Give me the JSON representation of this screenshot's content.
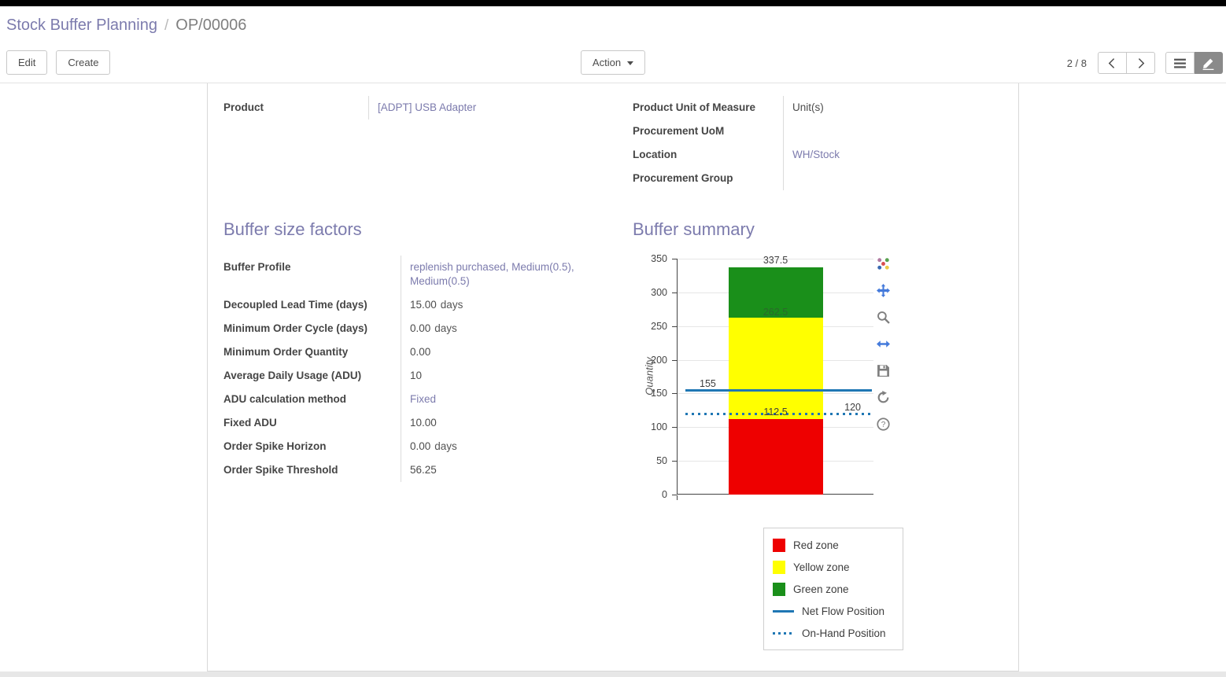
{
  "colors": {
    "accent": "#7c7bad",
    "link": "#7c7bad",
    "topbar": "#000000",
    "red_zone": "#ee0000",
    "yellow_zone": "#ffff00",
    "green_zone": "#1a8f1a",
    "line_blue": "#1f77b4"
  },
  "breadcrumb": {
    "parent": "Stock Buffer Planning",
    "separator": "/",
    "current": "OP/00006"
  },
  "control_panel": {
    "edit_label": "Edit",
    "create_label": "Create",
    "action_label": "Action",
    "pager": "2 / 8"
  },
  "icons": {
    "pager": [
      "prev-arrow",
      "next-arrow"
    ],
    "view_switcher": [
      "list-view",
      "form-view"
    ],
    "action_caret": "caret-down",
    "chart_modebar": [
      "plotly-logo",
      "pan",
      "zoom",
      "autoscale",
      "save",
      "reset-axes",
      "help"
    ]
  },
  "record": {
    "left": {
      "rows": [
        {
          "label": "Product",
          "value": "[ADPT] USB Adapter",
          "is_link": true
        }
      ]
    },
    "right": {
      "rows": [
        {
          "label": "Product Unit of Measure",
          "value": "Unit(s)",
          "is_link": false
        },
        {
          "label": "Procurement UoM",
          "value": "",
          "is_link": false
        },
        {
          "label": "Location",
          "value": "WH/Stock",
          "is_link": true
        },
        {
          "label": "Procurement Group",
          "value": "",
          "is_link": false
        }
      ]
    }
  },
  "buffer_size_factors": {
    "title": "Buffer size factors",
    "rows": [
      {
        "label": "Buffer Profile",
        "value": "replenish purchased, Medium(0.5), Medium(0.5)",
        "suffix": "",
        "is_link": true
      },
      {
        "label": "Decoupled Lead Time (days)",
        "value": "15.00",
        "suffix": "days",
        "is_link": false
      },
      {
        "label": "Minimum Order Cycle (days)",
        "value": "0.00",
        "suffix": "days",
        "is_link": false
      },
      {
        "label": "Minimum Order Quantity",
        "value": "0.00",
        "suffix": "",
        "is_link": false
      },
      {
        "label": "Average Daily Usage (ADU)",
        "value": "10",
        "suffix": "",
        "is_link": false
      },
      {
        "label": "ADU calculation method",
        "value": "Fixed",
        "suffix": "",
        "is_link": true
      },
      {
        "label": "Fixed ADU",
        "value": "10.00",
        "suffix": "",
        "is_link": false
      },
      {
        "label": "Order Spike Horizon",
        "value": "0.00",
        "suffix": "days",
        "is_link": false
      },
      {
        "label": "Order Spike Threshold",
        "value": "56.25",
        "suffix": "",
        "is_link": false
      }
    ]
  },
  "buffer_summary": {
    "title": "Buffer summary"
  },
  "chart_data": {
    "type": "bar",
    "title": "",
    "xlabel": "",
    "ylabel": "Quantity",
    "ylim": [
      0,
      350
    ],
    "yticks": [
      0,
      50,
      100,
      150,
      200,
      250,
      300,
      350
    ],
    "grid": true,
    "legend_position": "bottom-right",
    "series": [
      {
        "name": "Red zone",
        "color": "#ee0000",
        "range": [
          0,
          112.5
        ]
      },
      {
        "name": "Yellow zone",
        "color": "#ffff00",
        "range": [
          112.5,
          262.5
        ]
      },
      {
        "name": "Green zone",
        "color": "#1a8f1a",
        "range": [
          262.5,
          337.5
        ]
      }
    ],
    "lines": [
      {
        "name": "Net Flow Position",
        "value": 155,
        "style": "solid",
        "color": "#1f77b4"
      },
      {
        "name": "On-Hand Position",
        "value": 120,
        "style": "dotted",
        "color": "#1f77b4"
      }
    ],
    "annotations": [
      {
        "text": "337.5",
        "y": 337.5,
        "align": "center",
        "dy": -16,
        "color": "#3d3d3d"
      },
      {
        "text": "262.5",
        "y": 262.5,
        "align": "center",
        "dy": -14,
        "color": "#2d662d"
      },
      {
        "text": "155",
        "y": 155,
        "align": "left",
        "dy": -15,
        "color": "#3d3d3d"
      },
      {
        "text": "112.5",
        "y": 120,
        "align": "center",
        "dy": -9,
        "color": "#3d3d3d"
      },
      {
        "text": "120",
        "y": 120,
        "align": "right",
        "dy": -15,
        "color": "#3d3d3d"
      }
    ]
  }
}
